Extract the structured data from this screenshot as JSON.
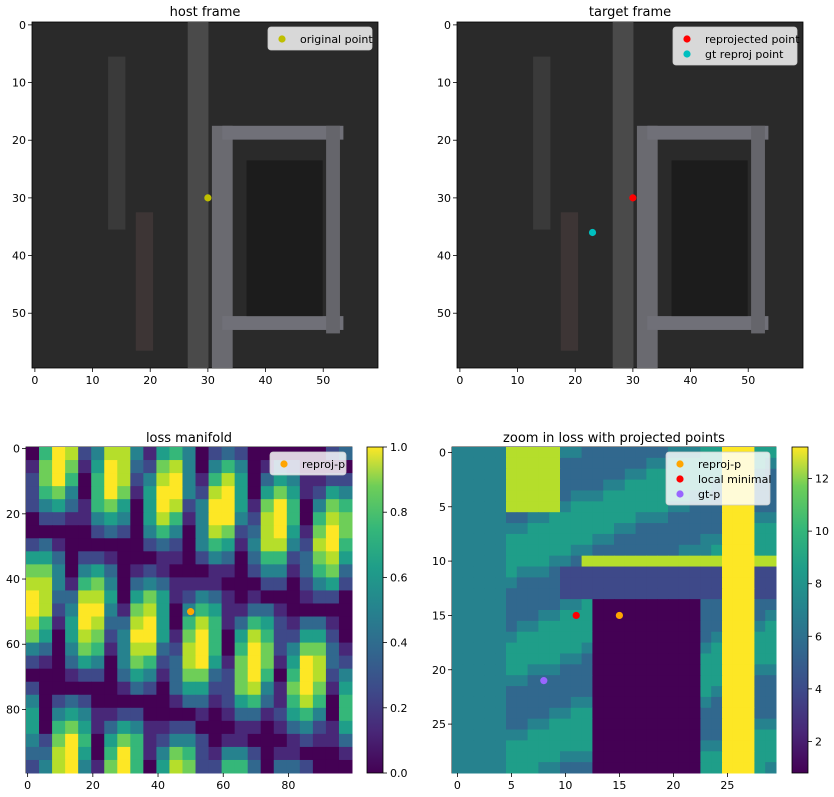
{
  "chart_data": [
    {
      "type": "image",
      "title": "host frame",
      "xticks": [
        0,
        10,
        20,
        30,
        40,
        50
      ],
      "yticks": [
        0,
        10,
        20,
        30,
        40,
        50
      ],
      "xlim": [
        -0.5,
        59.5
      ],
      "ylim": [
        59.5,
        -0.5
      ],
      "colormap": "grayscale photo",
      "legend_position": "upper right",
      "series": [
        {
          "name": "original point",
          "color": "#bfbf00",
          "points": [
            [
              30,
              30
            ]
          ]
        }
      ]
    },
    {
      "type": "image",
      "title": "target frame",
      "xticks": [
        0,
        10,
        20,
        30,
        40,
        50
      ],
      "yticks": [
        0,
        10,
        20,
        30,
        40,
        50
      ],
      "xlim": [
        -0.5,
        59.5
      ],
      "ylim": [
        59.5,
        -0.5
      ],
      "colormap": "grayscale photo",
      "legend_position": "upper right",
      "series": [
        {
          "name": "reprojected point",
          "color": "#ff0000",
          "points": [
            [
              30,
              30
            ]
          ]
        },
        {
          "name": "gt reproj point",
          "color": "#00bfbf",
          "points": [
            [
              23,
              36
            ]
          ]
        }
      ]
    },
    {
      "type": "heatmap",
      "title": "loss manifold",
      "xticks": [
        0,
        20,
        40,
        60,
        80
      ],
      "yticks": [
        0,
        20,
        40,
        60,
        80
      ],
      "xlim": [
        -0.5,
        99.5
      ],
      "ylim": [
        99.5,
        -0.5
      ],
      "colormap": "viridis",
      "colorbar": {
        "ticks": [
          "0.0",
          "0.2",
          "0.4",
          "0.6",
          "0.8",
          "1.0"
        ],
        "range": [
          0,
          1
        ]
      },
      "legend_position": "upper right",
      "series": [
        {
          "name": "reproj-p",
          "color": "#ffa500",
          "points": [
            [
              50,
              50
            ]
          ]
        }
      ]
    },
    {
      "type": "heatmap",
      "title": "zoom in loss with projected points",
      "xticks": [
        0,
        5,
        10,
        15,
        20,
        25
      ],
      "yticks": [
        0,
        5,
        10,
        15,
        20,
        25
      ],
      "xlim": [
        -0.5,
        29.5
      ],
      "ylim": [
        29.5,
        -0.5
      ],
      "colormap": "viridis",
      "colorbar": {
        "ticks": [
          "2",
          "4",
          "6",
          "8",
          "10",
          "12"
        ],
        "range": [
          0.8,
          13.2
        ]
      },
      "legend_position": "upper right",
      "series": [
        {
          "name": "reproj-p",
          "color": "#ffa500",
          "points": [
            [
              15,
              15
            ]
          ]
        },
        {
          "name": "local minimal",
          "color": "#ff0000",
          "points": [
            [
              11,
              15
            ]
          ]
        },
        {
          "name": "gt-p",
          "color": "#9966ff",
          "points": [
            [
              8,
              21
            ]
          ]
        }
      ]
    }
  ]
}
